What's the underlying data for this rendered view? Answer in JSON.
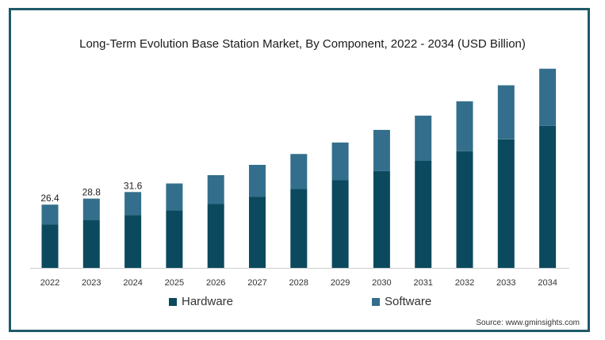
{
  "chart_data": {
    "type": "bar",
    "stacked": true,
    "title": "Long-Term Evolution Base Station Market, By Component, 2022 - 2034 (USD Billion)",
    "categories": [
      "2022",
      "2023",
      "2024",
      "2025",
      "2026",
      "2027",
      "2028",
      "2029",
      "2030",
      "2031",
      "2032",
      "2033",
      "2034"
    ],
    "series": [
      {
        "name": "Hardware",
        "color": "#0b4a5e",
        "values": [
          15.1,
          16.8,
          18.5,
          20.1,
          22.3,
          24.9,
          27.6,
          30.7,
          33.8,
          37.4,
          40.8,
          44.9,
          49.6
        ]
      },
      {
        "name": "Software",
        "color": "#336f8c",
        "values": [
          7.0,
          7.4,
          8.0,
          9.4,
          10.1,
          11.1,
          12.2,
          13.1,
          14.4,
          15.8,
          17.4,
          18.9,
          20.0
        ]
      }
    ],
    "data_labels": [
      "26.4",
      "28.8",
      "31.6"
    ],
    "ylim": [
      0,
      72
    ],
    "grid": false,
    "legend": "bottom"
  },
  "source_text": "Source: www.gminsights.com"
}
